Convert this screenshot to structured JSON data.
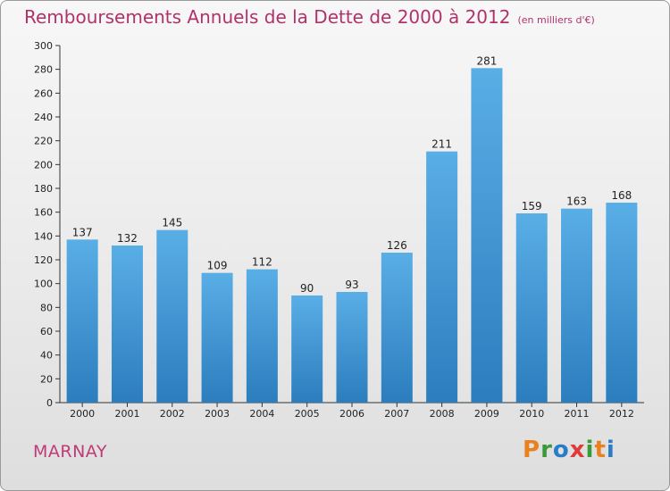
{
  "chart_data": {
    "type": "bar",
    "title": "Remboursements Annuels de la Dette de 2000 à 2012",
    "unit": "(en milliers d'€)",
    "categories": [
      "2000",
      "2001",
      "2002",
      "2003",
      "2004",
      "2005",
      "2006",
      "2007",
      "2008",
      "2009",
      "2010",
      "2011",
      "2012"
    ],
    "values": [
      137,
      132,
      145,
      109,
      112,
      90,
      93,
      126,
      211,
      281,
      159,
      163,
      168
    ],
    "ylim": [
      0,
      300
    ],
    "yticks": [
      0,
      20,
      40,
      60,
      80,
      100,
      120,
      140,
      160,
      180,
      200,
      220,
      240,
      260,
      280,
      300
    ],
    "grid": false,
    "colors": {
      "bar_top": "#5aaee6",
      "bar_bottom": "#2b7dbd",
      "axis": "#333333"
    }
  },
  "place_name": "MARNAY",
  "logo": {
    "text": "Proxiti",
    "colors": [
      "#e8821f",
      "#3a9a3a",
      "#2a7cc7",
      "#e03a3a",
      "#3a9a3a",
      "#e8821f",
      "#2a7cc7"
    ]
  }
}
